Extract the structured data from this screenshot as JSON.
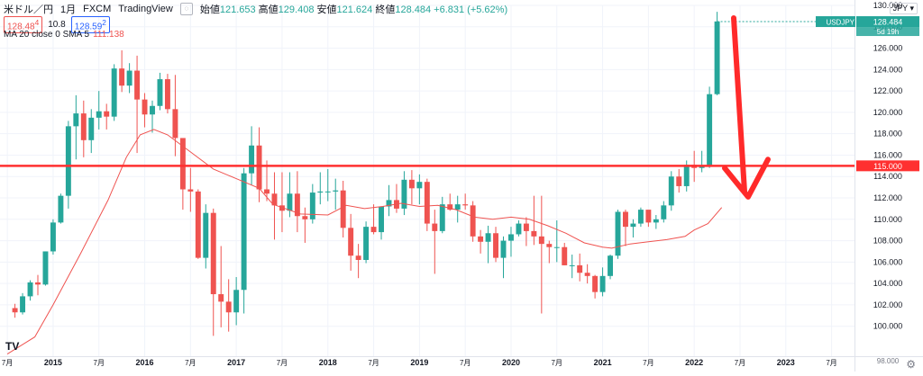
{
  "header": {
    "symbol": "米ドル／円",
    "interval": "1月",
    "broker": "FXCM",
    "platform": "TradingView",
    "open_label": "始値",
    "open": "121.653",
    "high_label": "高値",
    "high": "129.408",
    "low_label": "安値",
    "low": "121.624",
    "close_label": "終値",
    "close": "128.484",
    "change": "+6.831 (+5.62%)",
    "sell_price": "128.48",
    "sell_sup": "4",
    "spread": "10.8",
    "buy_price": "128.59",
    "buy_sup": "2",
    "currency_badge": "JPY",
    "ma_label": "MA 20 close 0 SMA 5",
    "ma_value": "111.138"
  },
  "colors": {
    "up": "#26a69a",
    "down": "#ef5350",
    "ma": "#ef5350",
    "horizontal_line": "#ff3030",
    "arrow": "#ff2a2a",
    "price_badge": "#26a69a",
    "grid": "#f0f3fa"
  },
  "icons": [
    "eye-off-icon",
    "tradingview-logo-icon",
    "gear-icon"
  ],
  "chart_data": {
    "type": "candlestick",
    "title": "",
    "xlabel": "",
    "ylabel": "",
    "ylim": [
      97.2,
      130.0
    ],
    "y_ticks": [
      "100.000",
      "102.000",
      "104.000",
      "106.000",
      "108.000",
      "110.000",
      "112.000",
      "114.000",
      "116.000",
      "118.000",
      "120.000",
      "122.000",
      "124.000",
      "126.000",
      "128.000",
      "130.000"
    ],
    "y_ticks_visible_top": "130.000",
    "x_ticks": [
      {
        "label": "7月",
        "t": 2014.5
      },
      {
        "label": "2015",
        "t": 2015.0
      },
      {
        "label": "7月",
        "t": 2015.5
      },
      {
        "label": "2016",
        "t": 2016.0
      },
      {
        "label": "7月",
        "t": 2016.5
      },
      {
        "label": "2017",
        "t": 2017.0
      },
      {
        "label": "7月",
        "t": 2017.5
      },
      {
        "label": "2018",
        "t": 2018.0
      },
      {
        "label": "7月",
        "t": 2018.5
      },
      {
        "label": "2019",
        "t": 2019.0
      },
      {
        "label": "7月",
        "t": 2019.5
      },
      {
        "label": "2020",
        "t": 2020.0
      },
      {
        "label": "7月",
        "t": 2020.5
      },
      {
        "label": "2021",
        "t": 2021.0
      },
      {
        "label": "7月",
        "t": 2021.5
      },
      {
        "label": "2022",
        "t": 2022.0
      },
      {
        "label": "7月",
        "t": 2022.5
      },
      {
        "label": "2023",
        "t": 2023.0
      },
      {
        "label": "7月",
        "t": 2023.5
      }
    ],
    "x_range": [
      2014.42,
      2023.75
    ],
    "bottom_right_tick": "98.000",
    "last_price_label": "128.484",
    "last_price_sub": "USDJPY",
    "countdown": "5d 19h",
    "horizontal_level": 115.0,
    "horizontal_level_label": "115.000",
    "annotation": "Red arrow drawn from the top of the last candle down to about 112.5, ending in a V-shaped arrowhead",
    "ohlc": [
      [
        101.7,
        102.1,
        100.8,
        101.3
      ],
      [
        101.3,
        103.1,
        101.1,
        102.8
      ],
      [
        102.8,
        104.3,
        102.4,
        104.1
      ],
      [
        104.1,
        104.8,
        102.9,
        103.9
      ],
      [
        103.9,
        107.0,
        103.8,
        107.0
      ],
      [
        107.0,
        110.0,
        106.7,
        109.7
      ],
      [
        109.7,
        112.4,
        109.6,
        112.2
      ],
      [
        112.2,
        119.2,
        111.0,
        118.7
      ],
      [
        118.7,
        121.6,
        115.6,
        119.9
      ],
      [
        119.9,
        121.1,
        115.8,
        117.4
      ],
      [
        117.4,
        120.3,
        116.2,
        119.5
      ],
      [
        119.5,
        122.0,
        118.4,
        120.1
      ],
      [
        120.1,
        120.8,
        118.4,
        119.6
      ],
      [
        119.6,
        124.5,
        119.2,
        124.1
      ],
      [
        124.1,
        125.8,
        121.9,
        122.5
      ],
      [
        122.5,
        124.6,
        121.8,
        123.9
      ],
      [
        123.9,
        125.3,
        116.2,
        121.2
      ],
      [
        121.2,
        121.8,
        118.6,
        119.8
      ],
      [
        119.8,
        121.1,
        118.1,
        120.6
      ],
      [
        120.6,
        123.7,
        120.2,
        123.1
      ],
      [
        123.1,
        123.6,
        119.9,
        120.3
      ],
      [
        120.3,
        123.5,
        115.9,
        117.6
      ],
      [
        117.6,
        117.5,
        110.9,
        112.8
      ],
      [
        112.8,
        114.8,
        110.7,
        112.6
      ],
      [
        112.6,
        112.8,
        106.3,
        106.4
      ],
      [
        106.4,
        111.4,
        105.4,
        110.6
      ],
      [
        110.6,
        111.0,
        99.1,
        103.0
      ],
      [
        103.0,
        107.5,
        99.9,
        102.3
      ],
      [
        102.3,
        104.4,
        99.5,
        101.3
      ],
      [
        101.3,
        104.6,
        100.1,
        103.4
      ],
      [
        103.4,
        114.8,
        101.2,
        114.3
      ],
      [
        114.3,
        118.7,
        113.2,
        116.9
      ],
      [
        116.9,
        118.6,
        111.6,
        112.8
      ],
      [
        112.8,
        115.5,
        111.7,
        112.4
      ],
      [
        112.4,
        114.4,
        108.1,
        111.3
      ],
      [
        111.3,
        114.4,
        108.8,
        110.8
      ],
      [
        110.8,
        114.4,
        110.2,
        112.4
      ],
      [
        112.4,
        114.5,
        108.8,
        110.3
      ],
      [
        110.3,
        111.1,
        107.8,
        110.0
      ],
      [
        110.0,
        113.3,
        109.6,
        112.5
      ],
      [
        112.5,
        114.4,
        111.4,
        112.6
      ],
      [
        112.6,
        114.7,
        111.7,
        112.6
      ],
      [
        112.6,
        113.8,
        110.9,
        112.7
      ],
      [
        112.7,
        113.6,
        108.3,
        109.2
      ],
      [
        109.2,
        110.5,
        105.2,
        106.6
      ],
      [
        106.6,
        107.7,
        104.5,
        106.2
      ],
      [
        106.2,
        109.8,
        105.9,
        109.3
      ],
      [
        109.3,
        111.4,
        108.6,
        108.8
      ],
      [
        108.8,
        111.2,
        108.1,
        111.2
      ],
      [
        111.2,
        113.2,
        110.3,
        111.8
      ],
      [
        111.8,
        113.3,
        110.6,
        111.0
      ],
      [
        111.0,
        114.5,
        110.4,
        113.7
      ],
      [
        113.7,
        114.6,
        111.4,
        112.9
      ],
      [
        112.9,
        114.2,
        111.4,
        113.5
      ],
      [
        113.5,
        113.8,
        108.9,
        109.6
      ],
      [
        109.6,
        110.9,
        104.9,
        108.9
      ],
      [
        108.9,
        112.1,
        108.7,
        111.4
      ],
      [
        111.4,
        112.4,
        110.8,
        110.9
      ],
      [
        110.9,
        112.2,
        109.7,
        111.4
      ],
      [
        111.4,
        112.4,
        110.9,
        111.3
      ],
      [
        111.3,
        111.7,
        107.9,
        108.4
      ],
      [
        108.4,
        109.0,
        106.8,
        107.9
      ],
      [
        107.9,
        109.4,
        105.9,
        108.7
      ],
      [
        108.7,
        109.3,
        106.0,
        106.4
      ],
      [
        106.4,
        108.4,
        104.5,
        108.0
      ],
      [
        108.0,
        109.3,
        106.5,
        108.6
      ],
      [
        108.6,
        109.9,
        108.4,
        109.6
      ],
      [
        109.6,
        110.2,
        107.5,
        108.9
      ],
      [
        108.9,
        112.2,
        107.6,
        108.4
      ],
      [
        108.4,
        112.2,
        101.2,
        107.7
      ],
      [
        107.7,
        108.0,
        105.9,
        107.4
      ],
      [
        107.4,
        109.9,
        106.0,
        107.4
      ],
      [
        107.4,
        107.8,
        105.7,
        105.7
      ],
      [
        105.7,
        106.7,
        104.5,
        105.7
      ],
      [
        105.7,
        106.8,
        104.2,
        105.0
      ],
      [
        105.0,
        105.8,
        104.0,
        104.7
      ],
      [
        104.7,
        104.8,
        102.6,
        103.2
      ],
      [
        103.2,
        105.5,
        102.8,
        104.7
      ],
      [
        104.7,
        106.7,
        104.4,
        106.6
      ],
      [
        106.6,
        110.9,
        106.3,
        110.7
      ],
      [
        110.7,
        110.9,
        107.5,
        109.3
      ],
      [
        109.3,
        110.0,
        108.3,
        109.6
      ],
      [
        109.6,
        111.1,
        109.3,
        110.9
      ],
      [
        110.9,
        110.8,
        109.3,
        109.7
      ],
      [
        109.7,
        110.4,
        109.1,
        110.0
      ],
      [
        110.0,
        111.7,
        109.7,
        111.3
      ],
      [
        111.3,
        114.5,
        110.8,
        114.0
      ],
      [
        114.0,
        114.7,
        112.5,
        113.1
      ],
      [
        113.1,
        115.5,
        112.6,
        115.1
      ],
      [
        115.1,
        116.4,
        113.5,
        114.8
      ],
      [
        114.8,
        116.4,
        114.4,
        115.0
      ],
      [
        115.0,
        122.4,
        114.8,
        121.7
      ],
      [
        121.7,
        129.4,
        121.6,
        128.5
      ]
    ],
    "ma20": [
      [
        2014.5,
        97.4
      ],
      [
        2014.8,
        99.0
      ],
      [
        2015.0,
        102.0
      ],
      [
        2015.3,
        106.8
      ],
      [
        2015.6,
        111.8
      ],
      [
        2015.8,
        115.8
      ],
      [
        2015.95,
        117.9
      ],
      [
        2016.1,
        118.4
      ],
      [
        2016.25,
        117.9
      ],
      [
        2016.5,
        116.3
      ],
      [
        2016.75,
        114.7
      ],
      [
        2017.0,
        113.8
      ],
      [
        2017.25,
        112.9
      ],
      [
        2017.4,
        111.4
      ],
      [
        2017.5,
        111.1
      ],
      [
        2017.7,
        110.5
      ],
      [
        2018.0,
        110.4
      ],
      [
        2018.2,
        111.3
      ],
      [
        2018.4,
        111.0
      ],
      [
        2018.6,
        111.2
      ],
      [
        2018.8,
        111.5
      ],
      [
        2019.0,
        111.2
      ],
      [
        2019.2,
        111.3
      ],
      [
        2019.4,
        110.9
      ],
      [
        2019.6,
        110.2
      ],
      [
        2019.8,
        110.0
      ],
      [
        2020.0,
        110.2
      ],
      [
        2020.2,
        110.0
      ],
      [
        2020.4,
        109.4
      ],
      [
        2020.6,
        108.7
      ],
      [
        2020.8,
        107.8
      ],
      [
        2021.0,
        107.4
      ],
      [
        2021.1,
        107.3
      ],
      [
        2021.3,
        107.7
      ],
      [
        2021.5,
        107.9
      ],
      [
        2021.7,
        108.1
      ],
      [
        2021.9,
        108.4
      ],
      [
        2022.0,
        109.0
      ],
      [
        2022.15,
        109.6
      ],
      [
        2022.3,
        111.1
      ]
    ]
  }
}
